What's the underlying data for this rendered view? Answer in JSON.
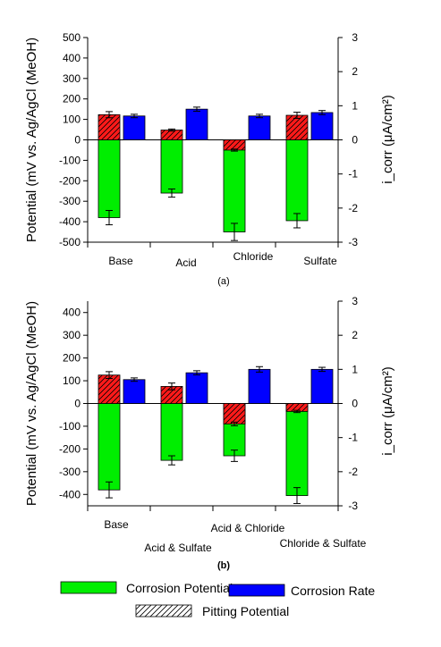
{
  "chart_data": [
    {
      "type": "bar",
      "panel_label": "(a)",
      "ylabel_left": "Potential (mV vs. Ag/AgCl (MeOH)",
      "ylabel_right": "i_corr (μA/cm²)",
      "ylim_left": [
        -500,
        500
      ],
      "ylim_right": [
        -3,
        3
      ],
      "yticks_left": [
        "500",
        "400",
        "300",
        "200",
        "100",
        "0",
        "-100",
        "-200",
        "-300",
        "-400",
        "-500"
      ],
      "yticks_right": [
        "3",
        "2",
        "1",
        "0",
        "-1",
        "-2",
        "-3"
      ],
      "categories": [
        "Base",
        "Acid",
        "Chloride",
        "Sulfate"
      ],
      "series": [
        {
          "name": "Pitting Potential",
          "axis": "left",
          "values": [
            123,
            48,
            -50,
            120
          ],
          "errors": [
            15,
            5,
            5,
            15
          ]
        },
        {
          "name": "Corrosion Potential",
          "axis": "left",
          "values": [
            -380,
            -260,
            -450,
            -395
          ],
          "errors": [
            35,
            20,
            42,
            35
          ]
        },
        {
          "name": "Corrosion Rate",
          "axis": "right",
          "values": [
            0.7,
            0.9,
            0.7,
            0.8
          ],
          "errors": [
            0.05,
            0.06,
            0.05,
            0.06
          ]
        }
      ]
    },
    {
      "type": "bar",
      "panel_label": "(b)",
      "ylabel_left": "Potential (mV vs. Ag/AgCl (MeOH)",
      "ylabel_right": "i_corr (μA/cm²)",
      "ylim_left": [
        -450,
        450
      ],
      "ylim_right": [
        -3,
        3
      ],
      "yticks_left": [
        "400",
        "300",
        "200",
        "100",
        "0",
        "-100",
        "-200",
        "-300",
        "-400"
      ],
      "yticks_right": [
        "3",
        "2",
        "1",
        "0",
        "-1",
        "-2",
        "-3"
      ],
      "categories": [
        "Base",
        "Acid & Sulfate",
        "Acid & Chloride",
        "Chloride & Sulfate"
      ],
      "series": [
        {
          "name": "Pitting Potential",
          "axis": "left",
          "values": [
            125,
            75,
            -90,
            -35
          ],
          "errors": [
            15,
            15,
            8,
            5
          ]
        },
        {
          "name": "Corrosion Potential",
          "axis": "left",
          "values": [
            -380,
            -250,
            -230,
            -405
          ],
          "errors": [
            35,
            20,
            25,
            35
          ]
        },
        {
          "name": "Corrosion Rate",
          "axis": "right",
          "values": [
            0.7,
            0.9,
            1.0,
            1.0
          ],
          "errors": [
            0.05,
            0.06,
            0.08,
            0.06
          ]
        }
      ]
    }
  ],
  "legend": {
    "corrosion_potential": "Corrosion  Potential",
    "corrosion_rate": "Corrosion Rate",
    "pitting_potential": "Pitting Potential"
  },
  "colors": {
    "corrosion_potential": "#00ee00",
    "corrosion_rate": "#0000ff",
    "pitting_potential": "#ff1a1a"
  }
}
